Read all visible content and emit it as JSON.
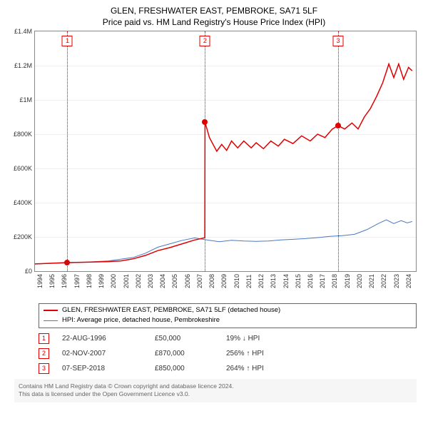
{
  "title_line1": "GLEN, FRESHWATER EAST, PEMBROKE, SA71 5LF",
  "title_line2": "Price paid vs. HM Land Registry's House Price Index (HPI)",
  "chart": {
    "x_min": 1994,
    "x_max": 2025,
    "y_min": 0,
    "y_max": 1400000,
    "y_ticks": [
      0,
      200000,
      400000,
      600000,
      800000,
      1000000,
      1200000,
      1400000
    ],
    "y_labels": [
      "£0",
      "£200K",
      "£400K",
      "£600K",
      "£800K",
      "£1M",
      "£1.2M",
      "£1.4M"
    ],
    "x_ticks": [
      1994,
      1995,
      1996,
      1997,
      1998,
      1999,
      2000,
      2001,
      2002,
      2003,
      2004,
      2005,
      2006,
      2007,
      2008,
      2009,
      2010,
      2011,
      2012,
      2013,
      2014,
      2015,
      2016,
      2017,
      2018,
      2019,
      2020,
      2021,
      2022,
      2023,
      2024
    ],
    "series": {
      "prop": {
        "color": "#e00000",
        "width": 1.5,
        "points": [
          [
            1994,
            42000
          ],
          [
            1996.6,
            50000
          ],
          [
            1998,
            52000
          ],
          [
            2000,
            56000
          ],
          [
            2001,
            60000
          ],
          [
            2002,
            72000
          ],
          [
            2003,
            92000
          ],
          [
            2004,
            120000
          ],
          [
            2005,
            138000
          ],
          [
            2006,
            160000
          ],
          [
            2007,
            182000
          ],
          [
            2007.82,
            195000
          ],
          [
            2007.84,
            870000
          ],
          [
            2008.2,
            780000
          ],
          [
            2008.8,
            700000
          ],
          [
            2009.2,
            740000
          ],
          [
            2009.6,
            705000
          ],
          [
            2010,
            760000
          ],
          [
            2010.5,
            720000
          ],
          [
            2011,
            760000
          ],
          [
            2011.6,
            720000
          ],
          [
            2012,
            750000
          ],
          [
            2012.6,
            715000
          ],
          [
            2013.2,
            760000
          ],
          [
            2013.8,
            730000
          ],
          [
            2014.3,
            770000
          ],
          [
            2015,
            745000
          ],
          [
            2015.7,
            790000
          ],
          [
            2016.4,
            760000
          ],
          [
            2017,
            800000
          ],
          [
            2017.6,
            780000
          ],
          [
            2018.2,
            830000
          ],
          [
            2018.68,
            850000
          ],
          [
            2019.2,
            830000
          ],
          [
            2019.8,
            865000
          ],
          [
            2020.3,
            830000
          ],
          [
            2020.8,
            900000
          ],
          [
            2021.3,
            950000
          ],
          [
            2021.8,
            1020000
          ],
          [
            2022.3,
            1100000
          ],
          [
            2022.8,
            1210000
          ],
          [
            2023.2,
            1130000
          ],
          [
            2023.6,
            1210000
          ],
          [
            2024,
            1120000
          ],
          [
            2024.4,
            1190000
          ],
          [
            2024.7,
            1170000
          ]
        ]
      },
      "hpi": {
        "color": "#4a78c4",
        "width": 1,
        "points": [
          [
            1994,
            42000
          ],
          [
            1996,
            47000
          ],
          [
            1998,
            52000
          ],
          [
            2000,
            60000
          ],
          [
            2002,
            80000
          ],
          [
            2003,
            105000
          ],
          [
            2004,
            140000
          ],
          [
            2005,
            160000
          ],
          [
            2006,
            180000
          ],
          [
            2007,
            194000
          ],
          [
            2008,
            182000
          ],
          [
            2009,
            172000
          ],
          [
            2010,
            180000
          ],
          [
            2011,
            176000
          ],
          [
            2012,
            174000
          ],
          [
            2013,
            176000
          ],
          [
            2014,
            182000
          ],
          [
            2015,
            186000
          ],
          [
            2016,
            190000
          ],
          [
            2017,
            196000
          ],
          [
            2018,
            203000
          ],
          [
            2019,
            207000
          ],
          [
            2020,
            215000
          ],
          [
            2021,
            242000
          ],
          [
            2022,
            280000
          ],
          [
            2022.6,
            300000
          ],
          [
            2023.2,
            278000
          ],
          [
            2023.8,
            295000
          ],
          [
            2024.3,
            282000
          ],
          [
            2024.7,
            290000
          ]
        ]
      }
    },
    "markers": [
      {
        "n": "1",
        "x": 1996.64,
        "y": 50000
      },
      {
        "n": "2",
        "x": 2007.84,
        "y": 870000
      },
      {
        "n": "3",
        "x": 2018.68,
        "y": 850000
      }
    ]
  },
  "legend": [
    {
      "color": "#e00000",
      "width": 2,
      "label": "GLEN, FRESHWATER EAST, PEMBROKE, SA71 5LF (detached house)"
    },
    {
      "color": "#4a78c4",
      "width": 1,
      "label": "HPI: Average price, detached house, Pembrokeshire"
    }
  ],
  "sales": [
    {
      "n": "1",
      "date": "22-AUG-1996",
      "price": "£50,000",
      "hpi": "19% ↓ HPI"
    },
    {
      "n": "2",
      "date": "02-NOV-2007",
      "price": "£870,000",
      "hpi": "256% ↑ HPI"
    },
    {
      "n": "3",
      "date": "07-SEP-2018",
      "price": "£850,000",
      "hpi": "264% ↑ HPI"
    }
  ],
  "footer_line1": "Contains HM Land Registry data © Crown copyright and database licence 2024.",
  "footer_line2": "This data is licensed under the Open Government Licence v3.0."
}
